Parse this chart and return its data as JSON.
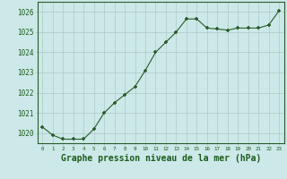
{
  "x": [
    0,
    1,
    2,
    3,
    4,
    5,
    6,
    7,
    8,
    9,
    10,
    11,
    12,
    13,
    14,
    15,
    16,
    17,
    18,
    19,
    20,
    21,
    22,
    23
  ],
  "y": [
    1020.3,
    1019.9,
    1019.7,
    1019.7,
    1019.7,
    1020.2,
    1021.0,
    1021.5,
    1021.9,
    1022.3,
    1023.1,
    1024.0,
    1024.5,
    1025.0,
    1025.65,
    1025.65,
    1025.2,
    1025.15,
    1025.1,
    1025.2,
    1025.2,
    1025.2,
    1025.35,
    1026.05
  ],
  "ylim": [
    1019.5,
    1026.5
  ],
  "yticks": [
    1020,
    1021,
    1022,
    1023,
    1024,
    1025,
    1026
  ],
  "xticks": [
    0,
    1,
    2,
    3,
    4,
    5,
    6,
    7,
    8,
    9,
    10,
    11,
    12,
    13,
    14,
    15,
    16,
    17,
    18,
    19,
    20,
    21,
    22,
    23
  ],
  "line_color": "#2a5c2a",
  "marker": "+",
  "marker_size": 3.5,
  "bg_color": "#cce8e8",
  "grid_color": "#b0c8c8",
  "xlabel": "Graphe pression niveau de la mer (hPa)",
  "xlabel_color": "#1a5c1a",
  "tick_color": "#1a5c1a",
  "label_fontsize": 7.0
}
